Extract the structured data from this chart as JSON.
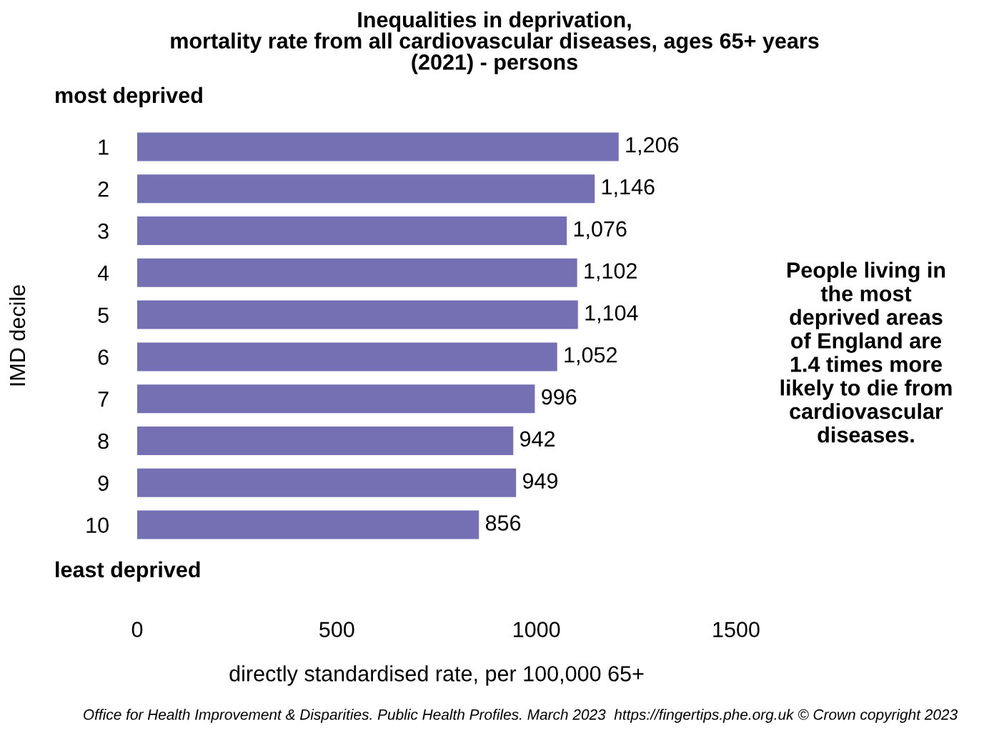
{
  "chart_data": {
    "type": "bar",
    "orientation": "horizontal",
    "title": "Inequalities in deprivation,\nmortality rate from all cardiovascular diseases, ages 65+ years\n(2021) - persons",
    "xlabel": "directly standardised rate, per 100,000 65+",
    "ylabel": "IMD decile",
    "categories": [
      "1",
      "2",
      "3",
      "4",
      "5",
      "6",
      "7",
      "8",
      "9",
      "10"
    ],
    "values": [
      1206,
      1146,
      1076,
      1102,
      1104,
      1052,
      996,
      942,
      949,
      856
    ],
    "color": "#7570b3",
    "value_labels": [
      "1,206",
      "1,146",
      "1,076",
      "1,102",
      "1,104",
      "1,052",
      "996",
      "942",
      "949",
      "856"
    ],
    "xlim": [
      0,
      1500
    ],
    "xticks": [
      0,
      500,
      1000,
      1500
    ],
    "grid": false,
    "legend": false,
    "annotations": [
      "most deprived",
      "least deprived",
      "People living in\nthe most\ndeprived areas\nof England are\n1.4 times more\nlikely to die from\ncardiovascular\ndiseases.",
      "Office for Health Improvement & Disparities. Public Health Profiles. March 2023  https://fingertips.phe.org.uk © Crown copyright 2023"
    ]
  }
}
